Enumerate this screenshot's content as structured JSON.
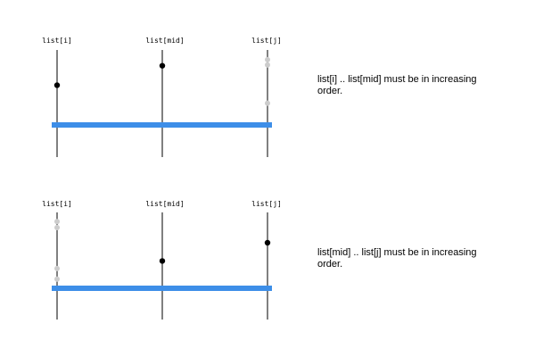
{
  "colors": {
    "axis": "#000000",
    "range_bar": "#3d8ee8",
    "point_active": "#000000",
    "point_inactive": "#cccccc"
  },
  "panels": [
    {
      "labels": [
        "list[i]",
        "list[mid]",
        "list[j]"
      ],
      "caption": "list[i] .. list[mid] must be in increasing order.",
      "points": [
        {
          "column": 0,
          "level": 0.53,
          "state": "active"
        },
        {
          "column": 1,
          "level": 0.79,
          "state": "active"
        },
        {
          "column": 2,
          "level": 0.87,
          "state": "inactive"
        },
        {
          "column": 2,
          "level": 0.8,
          "state": "inactive"
        },
        {
          "column": 2,
          "level": 0.29,
          "state": "inactive"
        }
      ]
    },
    {
      "labels": [
        "list[i]",
        "list[j]",
        "list[mid]"
      ],
      "caption": "list[mid] .. list[j] must be in increasing order.",
      "points": [
        {
          "column": 0,
          "level": 0.88,
          "state": "inactive"
        },
        {
          "column": 0,
          "level": 0.8,
          "state": "inactive"
        },
        {
          "column": 0,
          "level": 0.26,
          "state": "inactive"
        },
        {
          "column": 0,
          "level": 0.12,
          "state": "inactive"
        },
        {
          "column": 1,
          "level": 0.36,
          "state": "active"
        },
        {
          "column": 2,
          "level": 0.6,
          "state": "active"
        }
      ]
    }
  ]
}
